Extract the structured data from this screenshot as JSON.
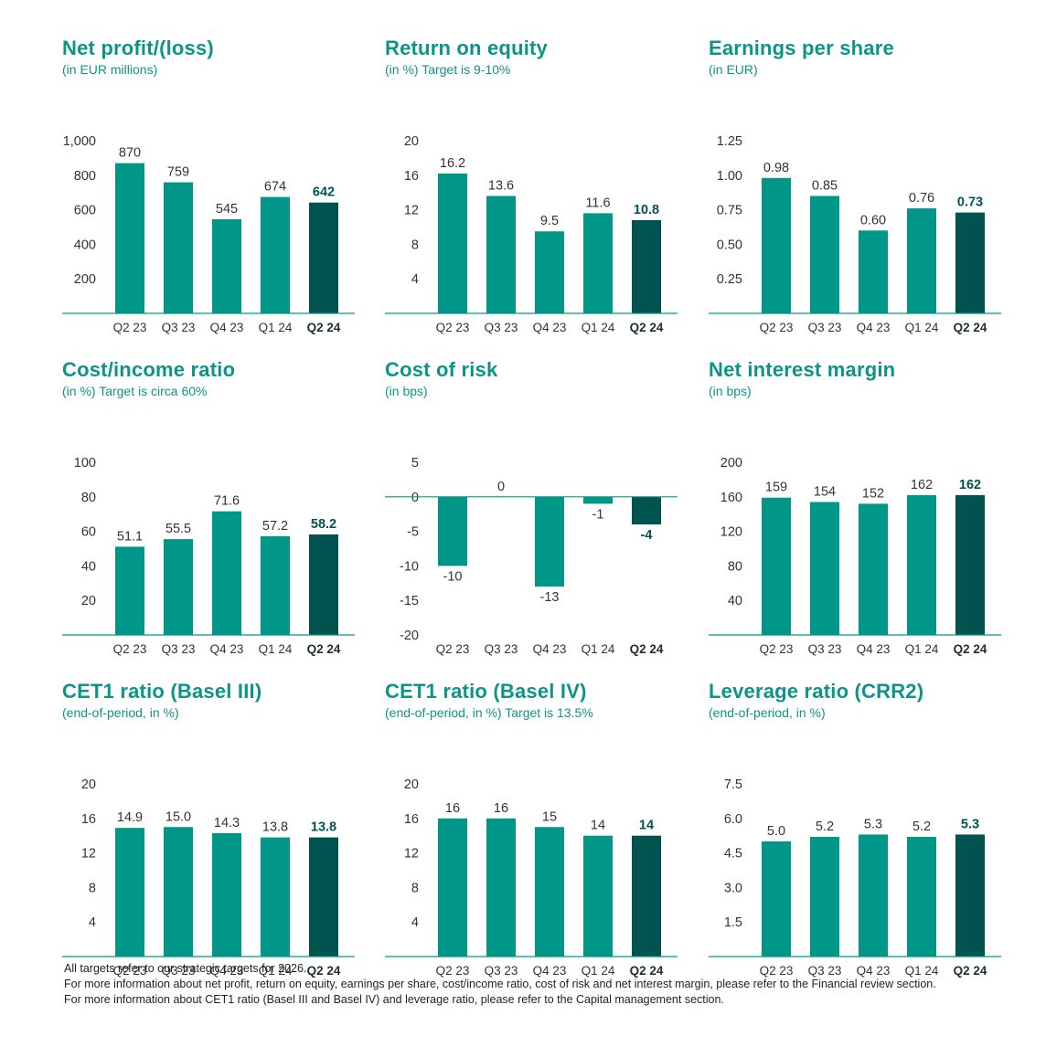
{
  "colors": {
    "bar": "#009688",
    "highlight": "#00534e",
    "axis": "#009688",
    "title": "#0d9488",
    "text": "#333333"
  },
  "chart_data": [
    {
      "type": "bar",
      "title": "Net profit/(loss)",
      "subtitle": "(in EUR millions)",
      "categories": [
        "Q2 23",
        "Q3 23",
        "Q4 23",
        "Q1 24",
        "Q2 24"
      ],
      "values": [
        870,
        759,
        545,
        674,
        642
      ],
      "value_labels": [
        "870",
        "759",
        "545",
        "674",
        "642"
      ],
      "yticks": [
        200,
        400,
        600,
        800,
        1000
      ],
      "ytick_labels": [
        "200",
        "400",
        "600",
        "800",
        "1,000"
      ],
      "ylim": [
        0,
        1000
      ],
      "highlight_index": 4
    },
    {
      "type": "bar",
      "title": "Return on equity",
      "subtitle": "(in %) Target is 9-10%",
      "categories": [
        "Q2 23",
        "Q3 23",
        "Q4 23",
        "Q1 24",
        "Q2 24"
      ],
      "values": [
        16.2,
        13.6,
        9.5,
        11.6,
        10.8
      ],
      "value_labels": [
        "16.2",
        "13.6",
        "9.5",
        "11.6",
        "10.8"
      ],
      "yticks": [
        4,
        8,
        12,
        16,
        20
      ],
      "ytick_labels": [
        "4",
        "8",
        "12",
        "16",
        "20"
      ],
      "ylim": [
        0,
        20
      ],
      "highlight_index": 4
    },
    {
      "type": "bar",
      "title": "Earnings per share",
      "subtitle": "(in EUR)",
      "categories": [
        "Q2 23",
        "Q3 23",
        "Q4 23",
        "Q1 24",
        "Q2 24"
      ],
      "values": [
        0.98,
        0.85,
        0.6,
        0.76,
        0.73
      ],
      "value_labels": [
        "0.98",
        "0.85",
        "0.60",
        "0.76",
        "0.73"
      ],
      "yticks": [
        0.25,
        0.5,
        0.75,
        1.0,
        1.25
      ],
      "ytick_labels": [
        "0.25",
        "0.50",
        "0.75",
        "1.00",
        "1.25"
      ],
      "ylim": [
        0,
        1.25
      ],
      "highlight_index": 4
    },
    {
      "type": "bar",
      "title": "Cost/income ratio",
      "subtitle": "(in %) Target is circa 60%",
      "categories": [
        "Q2 23",
        "Q3 23",
        "Q4 23",
        "Q1 24",
        "Q2 24"
      ],
      "values": [
        51.1,
        55.5,
        71.6,
        57.2,
        58.2
      ],
      "value_labels": [
        "51.1",
        "55.5",
        "71.6",
        "57.2",
        "58.2"
      ],
      "yticks": [
        20,
        40,
        60,
        80,
        100
      ],
      "ytick_labels": [
        "20",
        "40",
        "60",
        "80",
        "100"
      ],
      "ylim": [
        0,
        100
      ],
      "highlight_index": 4
    },
    {
      "type": "bar",
      "title": "Cost of risk",
      "subtitle": "(in bps)",
      "categories": [
        "Q2 23",
        "Q3 23",
        "Q4 23",
        "Q1 24",
        "Q2 24"
      ],
      "values": [
        -10,
        0,
        -13,
        -1,
        -4
      ],
      "value_labels": [
        "-10",
        "0",
        "-13",
        "-1",
        "-4"
      ],
      "yticks": [
        -20,
        -15,
        -10,
        -5,
        0,
        5
      ],
      "ytick_labels": [
        "-20",
        "-15",
        "-10",
        "-5",
        "0",
        "5"
      ],
      "ylim": [
        -20,
        5
      ],
      "highlight_index": 4
    },
    {
      "type": "bar",
      "title": "Net interest margin",
      "subtitle": "(in bps)",
      "categories": [
        "Q2 23",
        "Q3 23",
        "Q4 23",
        "Q1 24",
        "Q2 24"
      ],
      "values": [
        159,
        154,
        152,
        162,
        162
      ],
      "value_labels": [
        "159",
        "154",
        "152",
        "162",
        "162"
      ],
      "yticks": [
        40,
        80,
        120,
        160,
        200
      ],
      "ytick_labels": [
        "40",
        "80",
        "120",
        "160",
        "200"
      ],
      "ylim": [
        0,
        200
      ],
      "highlight_index": 4
    },
    {
      "type": "bar",
      "title": "CET1 ratio (Basel III)",
      "subtitle": "(end-of-period, in %)",
      "categories": [
        "Q2 23",
        "Q3 23",
        "Q4 23",
        "Q1 24",
        "Q2 24"
      ],
      "values": [
        14.9,
        15.0,
        14.3,
        13.8,
        13.8
      ],
      "value_labels": [
        "14.9",
        "15.0",
        "14.3",
        "13.8",
        "13.8"
      ],
      "yticks": [
        4,
        8,
        12,
        16,
        20
      ],
      "ytick_labels": [
        "4",
        "8",
        "12",
        "16",
        "20"
      ],
      "ylim": [
        0,
        20
      ],
      "highlight_index": 4
    },
    {
      "type": "bar",
      "title": "CET1 ratio (Basel IV)",
      "subtitle": "(end-of-period, in %) Target is 13.5%",
      "categories": [
        "Q2 23",
        "Q3 23",
        "Q4 23",
        "Q1 24",
        "Q2 24"
      ],
      "values": [
        16,
        16,
        15,
        14,
        14
      ],
      "value_labels": [
        "16",
        "16",
        "15",
        "14",
        "14"
      ],
      "yticks": [
        4,
        8,
        12,
        16,
        20
      ],
      "ytick_labels": [
        "4",
        "8",
        "12",
        "16",
        "20"
      ],
      "ylim": [
        0,
        20
      ],
      "highlight_index": 4
    },
    {
      "type": "bar",
      "title": "Leverage ratio (CRR2)",
      "subtitle": "(end-of-period, in %)",
      "categories": [
        "Q2 23",
        "Q3 23",
        "Q4 23",
        "Q1 24",
        "Q2 24"
      ],
      "values": [
        5.0,
        5.2,
        5.3,
        5.2,
        5.3
      ],
      "value_labels": [
        "5.0",
        "5.2",
        "5.3",
        "5.2",
        "5.3"
      ],
      "yticks": [
        1.5,
        3.0,
        4.5,
        6.0,
        7.5
      ],
      "ytick_labels": [
        "1.5",
        "3.0",
        "4.5",
        "6.0",
        "7.5"
      ],
      "ylim": [
        0,
        7.5
      ],
      "highlight_index": 4
    }
  ],
  "footnotes": [
    "All targets refer to our strategic targets for 2026.",
    "For more information about net profit, return on equity, earnings per share, cost/income ratio, cost of risk and net interest margin, please refer to the Financial review section.",
    "For more information about CET1 ratio (Basel III and Basel IV) and leverage ratio, please refer to the Capital management section."
  ]
}
